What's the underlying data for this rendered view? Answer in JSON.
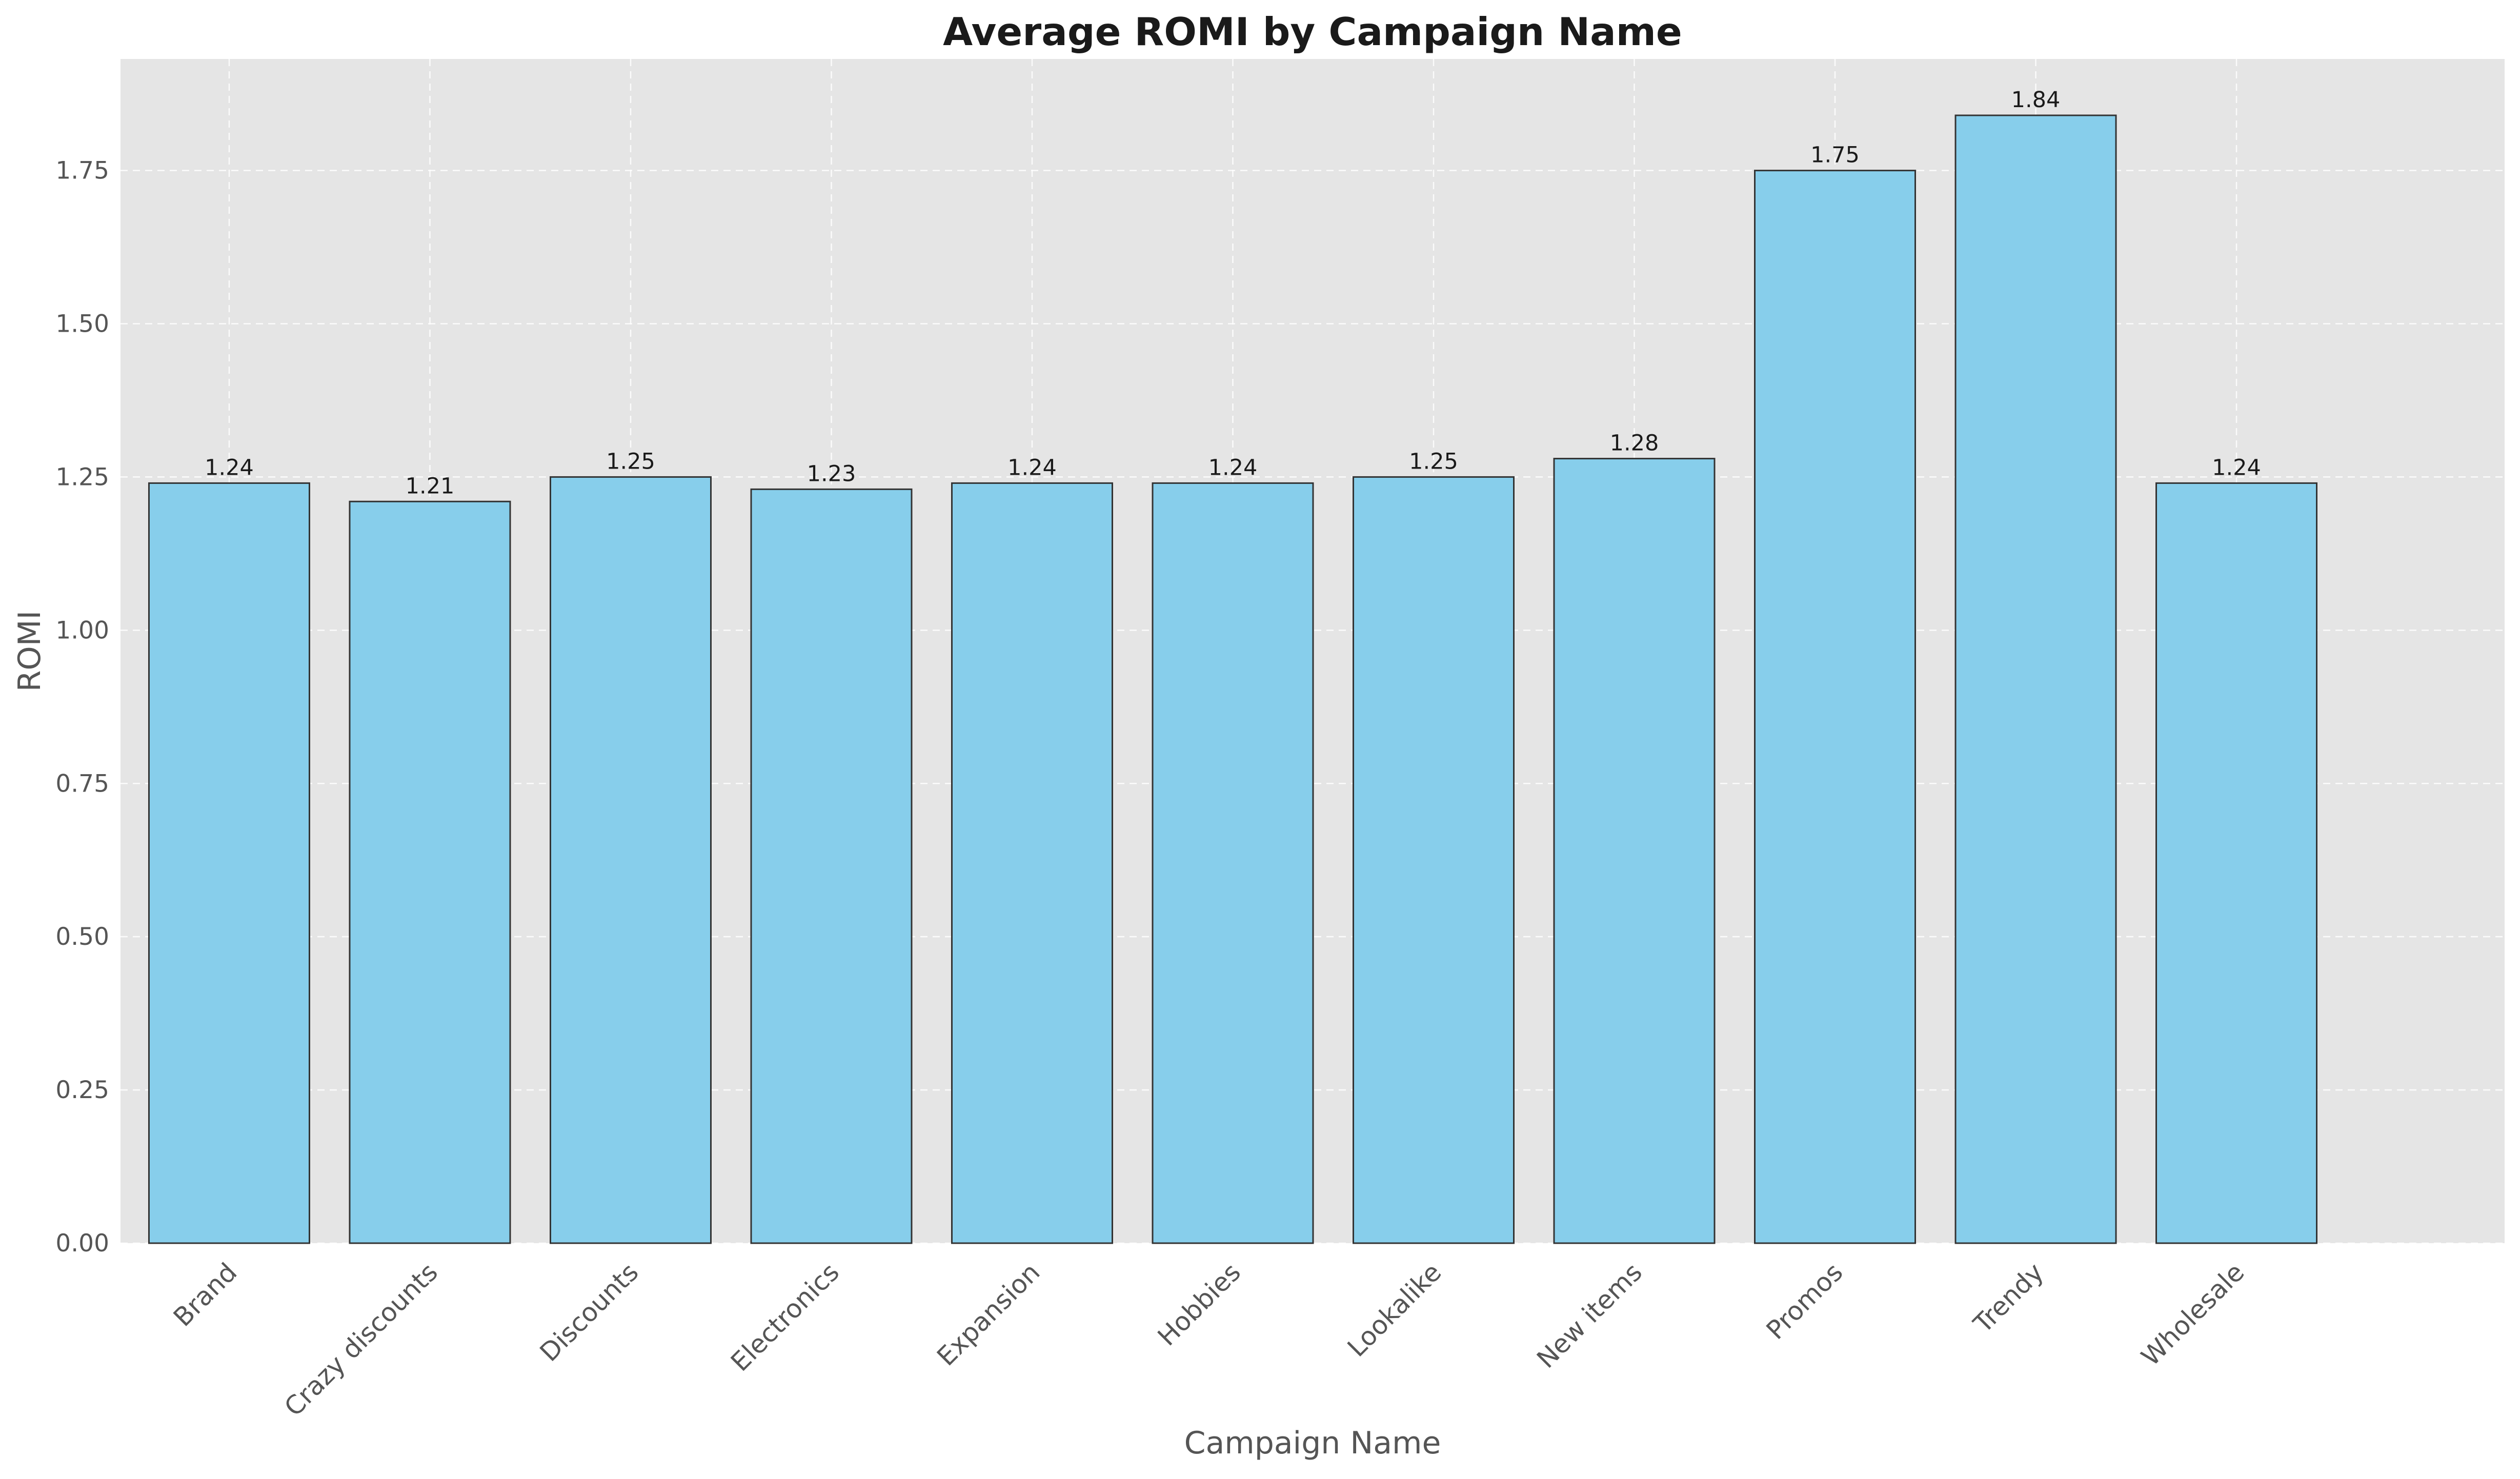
{
  "chart_data": {
    "type": "bar",
    "title": "Average ROMI by Campaign Name",
    "xlabel": "Campaign Name",
    "ylabel": "ROMI",
    "categories": [
      "Brand",
      "Crazy discounts",
      "Discounts",
      "Electronics",
      "Expansion",
      "Hobbies",
      "Lookalike",
      "New items",
      "Promos",
      "Trendy",
      "Wholesale"
    ],
    "values": [
      1.24,
      1.21,
      1.25,
      1.23,
      1.24,
      1.24,
      1.25,
      1.28,
      1.75,
      1.84,
      1.24
    ],
    "value_labels": [
      "1.24",
      "1.21",
      "1.25",
      "1.23",
      "1.24",
      "1.24",
      "1.25",
      "1.28",
      "1.75",
      "1.84",
      "1.24"
    ],
    "yticks": [
      "0.00",
      "0.25",
      "0.50",
      "0.75",
      "1.00",
      "1.25",
      "1.50",
      "1.75"
    ],
    "ylim": [
      0,
      1.932
    ],
    "grid": true,
    "colors": {
      "bar_fill": "#87CEEB",
      "bar_edge": "#333333",
      "plot_background": "#E5E5E5"
    }
  }
}
